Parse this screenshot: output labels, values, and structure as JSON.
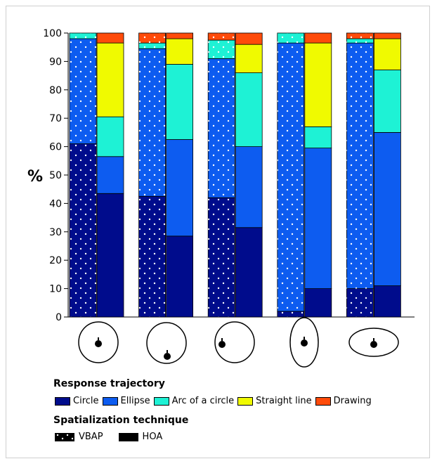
{
  "chart_data": {
    "type": "bar",
    "stacked": true,
    "grouped": true,
    "ylabel": "%",
    "ylim": [
      0,
      100
    ],
    "yticks": [
      0,
      10,
      20,
      30,
      40,
      50,
      60,
      70,
      80,
      90,
      100
    ],
    "categories": [
      "circle-centered",
      "circle-bottom",
      "circle-left",
      "vertical-ellipse",
      "horizontal-ellipse"
    ],
    "groups": [
      "VBAP",
      "HOA"
    ],
    "series": [
      {
        "name": "Circle",
        "color": "#000c8c",
        "VBAP": [
          61,
          42.5,
          42,
          2,
          10
        ],
        "HOA": [
          43.5,
          28.5,
          31.5,
          10,
          11
        ]
      },
      {
        "name": "Ellipse",
        "color": "#0d5cf0",
        "VBAP": [
          37,
          52,
          49,
          94.5,
          86.5
        ],
        "HOA": [
          13,
          34,
          28.5,
          49.5,
          54
        ]
      },
      {
        "name": "Arc of a circle",
        "color": "#1ef2d5",
        "VBAP": [
          2,
          2,
          6.5,
          3.5,
          1.5
        ],
        "HOA": [
          14,
          26.5,
          26,
          7.5,
          22
        ]
      },
      {
        "name": "Straight line",
        "color": "#f0fa00",
        "VBAP": [
          0,
          0,
          0,
          0,
          0
        ],
        "HOA": [
          26,
          9,
          10,
          29.5,
          11
        ]
      },
      {
        "name": "Drawing",
        "color": "#ff4b0a",
        "VBAP": [
          0,
          3.5,
          2.5,
          0,
          2
        ],
        "HOA": [
          3.5,
          2,
          4,
          3.5,
          2
        ]
      }
    ]
  },
  "legend": {
    "trajectory_title": "Response trajectory",
    "trajectory_items": [
      {
        "label": "Circle",
        "color": "#000c8c"
      },
      {
        "label": "Ellipse",
        "color": "#0d5cf0"
      },
      {
        "label": "Arc of a circle",
        "color": "#1ef2d5"
      },
      {
        "label": "Straight line",
        "color": "#f0fa00"
      },
      {
        "label": "Drawing",
        "color": "#ff4b0a"
      }
    ],
    "technique_title": "Spatialization technique",
    "technique_items": [
      {
        "label": "VBAP",
        "pattern": "dotted"
      },
      {
        "label": "HOA",
        "pattern": "solid"
      }
    ]
  }
}
